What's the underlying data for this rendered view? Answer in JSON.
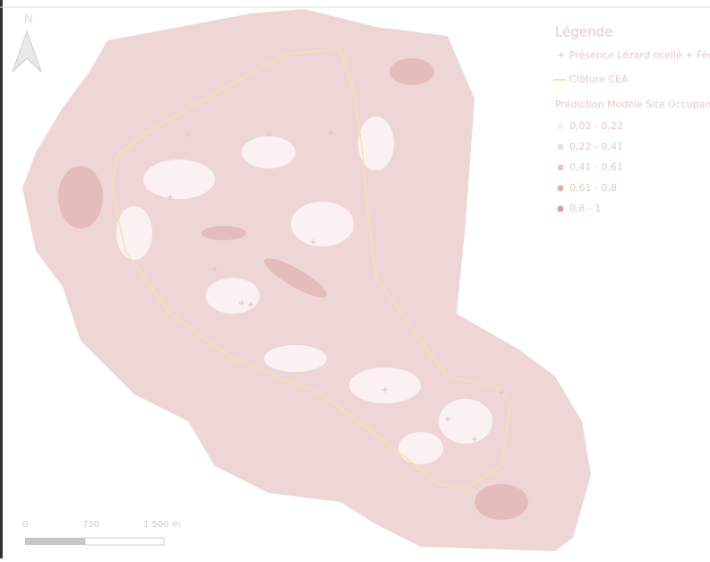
{
  "map": {
    "north": "N",
    "legend": {
      "title": "Légende",
      "items": [
        {
          "label": "Présence Lézard ocellé + Fèces"
        },
        {
          "label": "Clôture CEA"
        }
      ],
      "classes_title": "Prédiction Modèle Site Occupancy",
      "classes": [
        {
          "label": "0,02 - 0,22",
          "color": "#fbeeee"
        },
        {
          "label": "0,22 - 0,41",
          "color": "#f4dcdc"
        },
        {
          "label": "0,41 - 0,61",
          "color": "#eec6c6"
        },
        {
          "label": "0,61 - 0,8",
          "color": "#e6b0b0"
        },
        {
          "label": "0,8 - 1",
          "color": "#dc9c9c"
        }
      ]
    },
    "scale": {
      "labels": [
        "0",
        "750",
        "1 500 m"
      ]
    }
  }
}
